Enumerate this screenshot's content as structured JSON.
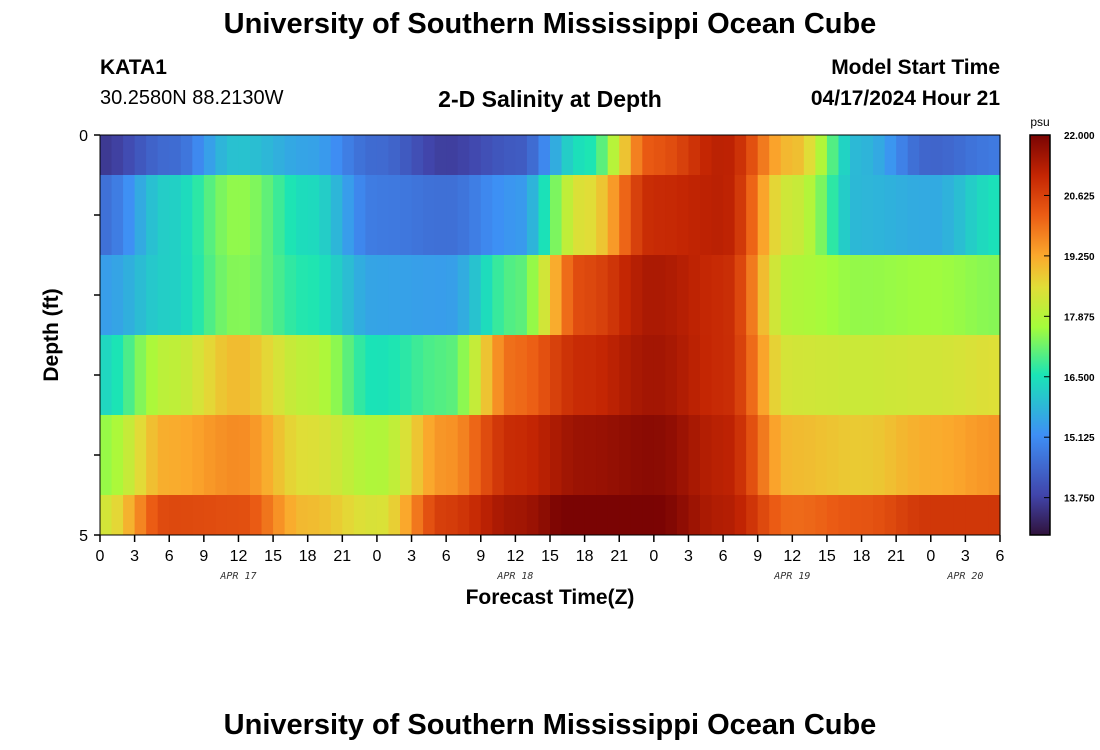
{
  "header": {
    "title": "University of Southern Mississippi Ocean Cube",
    "station": "KATA1",
    "coords": "30.2580N  88.2130W",
    "subtitle": "2-D Salinity at Depth",
    "start_label": "Model Start Time",
    "start_value": "04/17/2024 Hour 21"
  },
  "footer": {
    "title": "University of Southern Mississippi Ocean Cube"
  },
  "chart_data": {
    "type": "heatmap",
    "title": "2-D Salinity at Depth",
    "xlabel": "Forecast Time(Z)",
    "ylabel": "Depth (ft)",
    "ylim": [
      0,
      5
    ],
    "y_tick_labels": [
      "0",
      "5"
    ],
    "x_hours": [
      0,
      3,
      6,
      9,
      12,
      15,
      18,
      21,
      0,
      3,
      6,
      9,
      12,
      15,
      18,
      21,
      0,
      3,
      6,
      9,
      12,
      15,
      18,
      21,
      0,
      3,
      6
    ],
    "x_dates": [
      {
        "label": "APR 17",
        "hour_offset": 12
      },
      {
        "label": "APR 18",
        "hour_offset": 36
      },
      {
        "label": "APR 19",
        "hour_offset": 60
      },
      {
        "label": "APR 20",
        "hour_offset": 75
      }
    ],
    "depth_layers": [
      "0.0-0.5",
      "0.5-1.5",
      "1.5-2.5",
      "2.5-3.5",
      "3.5-4.5",
      "4.5-5.0"
    ],
    "time_anchors_hours": [
      0,
      6,
      12,
      18,
      24,
      30,
      36,
      42,
      48,
      54,
      60,
      66,
      72,
      78
    ],
    "salinity_psu": [
      [
        13.6,
        14.5,
        16.0,
        15.5,
        14.5,
        13.7,
        14.2,
        16.5,
        20.3,
        21.2,
        19.0,
        15.8,
        14.4,
        14.8
      ],
      [
        14.6,
        16.2,
        17.5,
        16.4,
        14.8,
        14.6,
        15.3,
        18.5,
        21.0,
        21.2,
        18.2,
        15.8,
        15.6,
        16.5
      ],
      [
        15.4,
        16.2,
        17.4,
        16.6,
        15.5,
        15.4,
        17.0,
        20.5,
        21.4,
        21.0,
        17.8,
        17.5,
        17.6,
        17.4
      ],
      [
        16.3,
        18.0,
        19.0,
        18.0,
        16.5,
        17.0,
        20.0,
        21.0,
        21.5,
        21.0,
        18.3,
        18.2,
        18.3,
        18.5
      ],
      [
        17.5,
        19.2,
        19.6,
        18.5,
        17.8,
        19.5,
        21.0,
        21.6,
        21.8,
        21.2,
        19.0,
        18.8,
        19.2,
        19.5
      ],
      [
        18.3,
        20.5,
        20.4,
        19.0,
        18.4,
        20.7,
        21.5,
        22.2,
        22.0,
        21.3,
        20.0,
        20.3,
        20.8,
        20.8
      ]
    ],
    "colorbar": {
      "unit": "psu",
      "ticks": [
        "22.000",
        "20.625",
        "19.250",
        "17.875",
        "16.500",
        "15.125",
        "13.750"
      ],
      "range": [
        12.9,
        22.0
      ]
    }
  }
}
